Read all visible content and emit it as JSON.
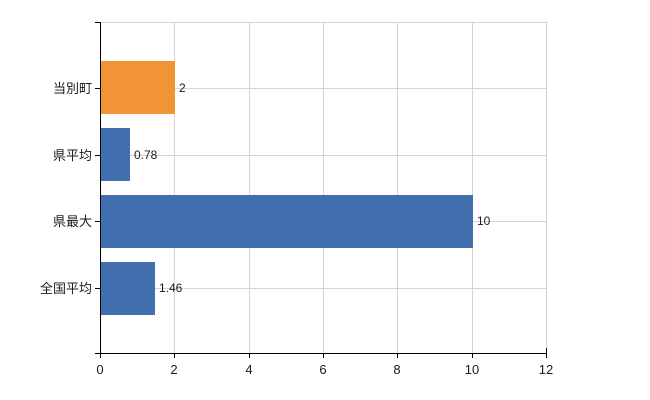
{
  "chart_data": {
    "type": "bar",
    "orientation": "horizontal",
    "title": "",
    "xlabel": "",
    "ylabel": "",
    "categories": [
      "当別町",
      "県平均",
      "県最大",
      "全国平均"
    ],
    "values": [
      2,
      0.78,
      10,
      1.46
    ],
    "value_labels": [
      "2",
      "0.78",
      "10",
      "1.46"
    ],
    "bar_colors": [
      "#F09436",
      "#4270AF",
      "#4270AF",
      "#4270AF"
    ],
    "xlim": [
      0,
      12
    ],
    "x_ticks": [
      0,
      2,
      4,
      6,
      8,
      10,
      12
    ],
    "x_tick_labels": [
      "0",
      "2",
      "4",
      "6",
      "8",
      "10",
      "12"
    ],
    "grid": true,
    "legend_position": "none"
  },
  "colors": {
    "bar_blue": "#4270AF",
    "bar_orange": "#F09436",
    "gridline": "#D5D5D5",
    "axis": "#000000",
    "text": "#1A1A1A",
    "background": "#FFFFFF"
  }
}
